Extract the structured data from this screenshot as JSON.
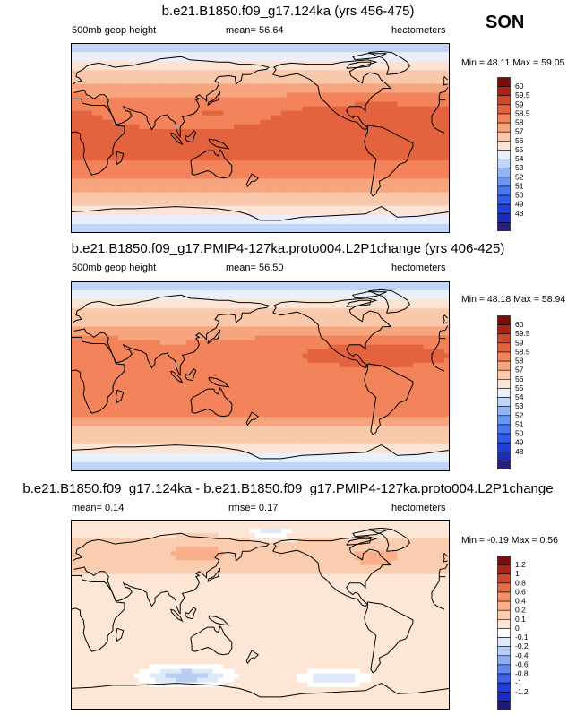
{
  "season": "SON",
  "chart_data": [
    {
      "type": "heatmap",
      "title": "b.e21.B1850.f09_g17.124ka (yrs 456-475)",
      "left_label": "500mb geop height",
      "center_label": "mean=  56.64",
      "right_label": "hectometers",
      "minmax": "Min = 48.11 Max = 59.05",
      "min": 48.11,
      "max": 59.05,
      "mean": 56.64,
      "colorbar_labels": [
        "60",
        "59.5",
        "59",
        "58.5",
        "58",
        "57",
        "56",
        "55",
        "54",
        "53",
        "52",
        "51",
        "50",
        "49",
        "48"
      ],
      "colors": [
        "#2a1f7a",
        "#1a2db8",
        "#1f3fd6",
        "#2e5ce6",
        "#4878ea",
        "#6a96ee",
        "#93b6f2",
        "#c0d4f6",
        "#eaf0fa",
        "#fbe4d6",
        "#fac8aa",
        "#f7a57e",
        "#f2835a",
        "#e4633f",
        "#cc4a2d",
        "#a82418",
        "#7a0e0e"
      ],
      "field": "zonal"
    },
    {
      "type": "heatmap",
      "title": "b.e21.B1850.f09_g17.PMIP4-127ka.proto004.L2P1change (yrs 406-425)",
      "left_label": "500mb geop height",
      "center_label": "mean=  56.50",
      "right_label": "hectometers",
      "minmax": "Min = 48.18 Max = 58.94",
      "min": 48.18,
      "max": 58.94,
      "mean": 56.5,
      "colorbar_labels": [
        "60",
        "59.5",
        "59",
        "58.5",
        "58",
        "57",
        "56",
        "55",
        "54",
        "53",
        "52",
        "51",
        "50",
        "49",
        "48"
      ],
      "colors": [
        "#2a1f7a",
        "#1a2db8",
        "#1f3fd6",
        "#2e5ce6",
        "#4878ea",
        "#6a96ee",
        "#93b6f2",
        "#c0d4f6",
        "#eaf0fa",
        "#fbe4d6",
        "#fac8aa",
        "#f7a57e",
        "#f2835a",
        "#e4633f",
        "#cc4a2d",
        "#a82418",
        "#7a0e0e"
      ],
      "field": "zonal"
    },
    {
      "type": "heatmap",
      "title": "b.e21.B1850.f09_g17.124ka - b.e21.B1850.f09_g17.PMIP4-127ka.proto004.L2P1change",
      "left_label": "mean=  0.14",
      "center_label": "rmse=  0.17",
      "right_label": "hectometers",
      "minmax": "Min = -0.19 Max =  0.56",
      "min": -0.19,
      "max": 0.56,
      "mean": 0.14,
      "rmse": 0.17,
      "colorbar_labels": [
        "1.2",
        "1",
        "0.8",
        "0.6",
        "0.4",
        "0.2",
        "0.1",
        "0",
        "-0.1",
        "-0.2",
        "-0.4",
        "-0.6",
        "-0.8",
        "-1",
        "-1.2"
      ],
      "colors": [
        "#1c1c78",
        "#1a2db8",
        "#1f3fd6",
        "#3e63e6",
        "#6488ec",
        "#8eaef0",
        "#b8cdf4",
        "#dde8f8",
        "#ffffff",
        "#fde6d6",
        "#fbcdb0",
        "#f9b08a",
        "#f39066",
        "#e36e45",
        "#cc4a2d",
        "#a82418",
        "#7a0e0e"
      ],
      "field": "diff"
    }
  ]
}
